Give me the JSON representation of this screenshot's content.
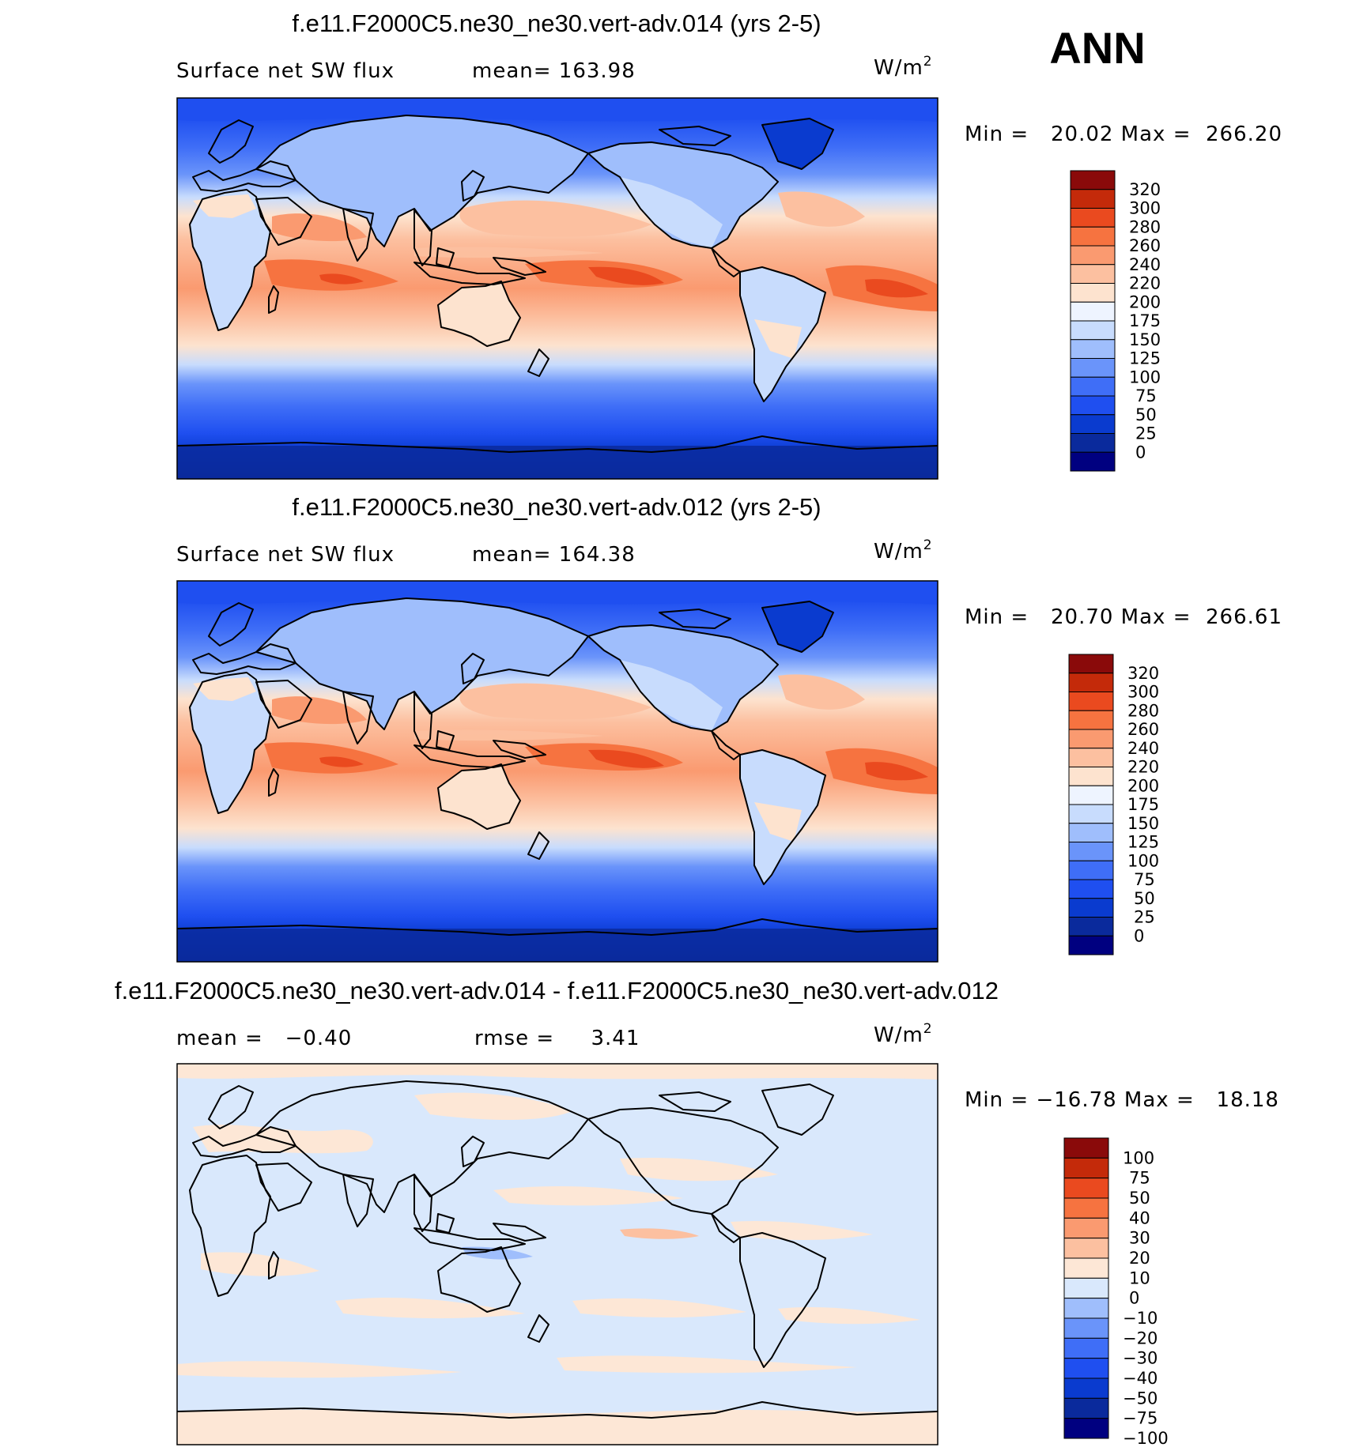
{
  "season": "ANN",
  "units": "W/m",
  "units_sup": "2",
  "palettes": {
    "abs": [
      "#000080",
      "#0a2a9c",
      "#0a3bcf",
      "#1f4ff0",
      "#3f6ef7",
      "#6a94fa",
      "#9fbefc",
      "#c8dcfd",
      "#eef4ff",
      "#fde3cf",
      "#fcc0a0",
      "#fa9a70",
      "#f67340",
      "#ea4a1f",
      "#c42a0a",
      "#8a0a0a"
    ],
    "diff": [
      "#000080",
      "#0a2a9c",
      "#0a3bcf",
      "#1f4ff0",
      "#3f6ef7",
      "#6a94fa",
      "#9fbefc",
      "#d9e8fc",
      "#fde7d6",
      "#fcc0a0",
      "#fa9a70",
      "#f67340",
      "#ea4a1f",
      "#c42a0a",
      "#8a0a0a"
    ]
  },
  "chart_data": [
    {
      "type": "heatmap",
      "title": "f.e11.F2000C5.ne30_ne30.vert-adv.014 (yrs 2-5)",
      "subtitle_left": "Surface net SW flux",
      "subtitle_mid": "mean= 163.98",
      "stats": "Min =   20.02 Max =  266.20",
      "colorbar_levels": [
        "320",
        "300",
        "280",
        "260",
        "240",
        "220",
        "200",
        "175",
        "150",
        "125",
        "100",
        "75",
        "50",
        "25",
        "0"
      ],
      "palette": "abs",
      "field": "abs"
    },
    {
      "type": "heatmap",
      "title": "f.e11.F2000C5.ne30_ne30.vert-adv.012 (yrs 2-5)",
      "subtitle_left": "Surface net SW flux",
      "subtitle_mid": "mean= 164.38",
      "stats": "Min =   20.70 Max =  266.61",
      "colorbar_levels": [
        "320",
        "300",
        "280",
        "260",
        "240",
        "220",
        "200",
        "175",
        "150",
        "125",
        "100",
        "75",
        "50",
        "25",
        "0"
      ],
      "palette": "abs",
      "field": "abs"
    },
    {
      "type": "heatmap",
      "title": "f.e11.F2000C5.ne30_ne30.vert-adv.014 - f.e11.F2000C5.ne30_ne30.vert-adv.012",
      "subtitle_left": "mean =   −0.40",
      "subtitle_mid": "rmse =     3.41",
      "stats": "Min = −16.78 Max =   18.18",
      "colorbar_levels": [
        "100",
        "75",
        "50",
        "40",
        "30",
        "20",
        "10",
        "0",
        "−10",
        "−20",
        "−30",
        "−40",
        "−50",
        "−75",
        "−100"
      ],
      "palette": "diff",
      "field": "diff"
    }
  ]
}
